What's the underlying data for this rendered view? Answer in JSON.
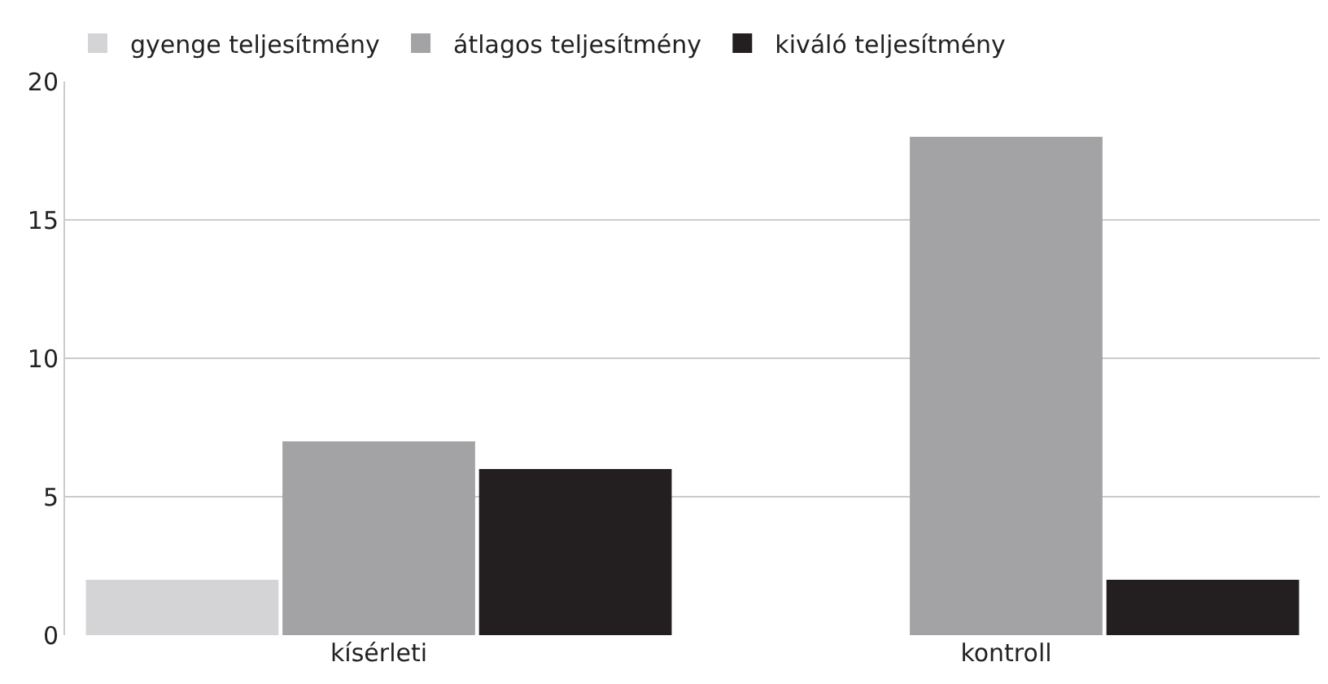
{
  "chart_data": {
    "type": "bar",
    "categories": [
      "kísérleti",
      "kontroll"
    ],
    "series": [
      {
        "name": "gyenge teljesítmény",
        "color": "#d4d4d6",
        "values": [
          2,
          0
        ]
      },
      {
        "name": "átlagos teljesítmény",
        "color": "#a3a3a6",
        "values": [
          7,
          18
        ]
      },
      {
        "name": "kiváló teljesítmény",
        "color": "#231f20",
        "values": [
          6,
          2
        ]
      }
    ],
    "ylim": [
      0,
      20
    ],
    "yticks": [
      0,
      5,
      10,
      15,
      20
    ],
    "grid": "y",
    "legend": "top left"
  }
}
